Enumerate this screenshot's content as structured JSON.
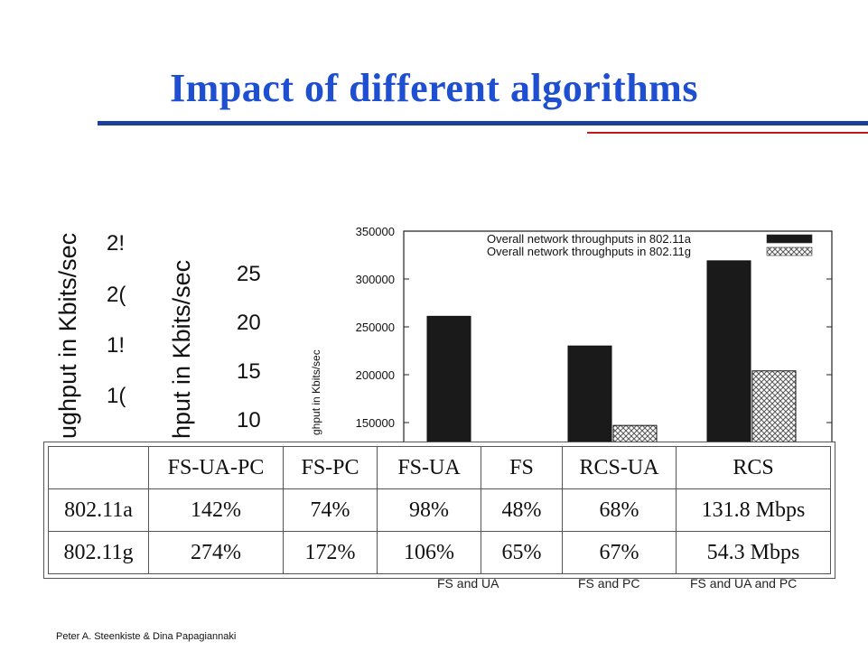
{
  "slide": {
    "title": "Impact of different algorithms",
    "footer": "Peter A. Steenkiste & Dina Papagiannaki",
    "colors": {
      "title": "#1f4fd1",
      "rule_blue": "#1c3f9a",
      "rule_red": "#c01c1c"
    }
  },
  "fragments": {
    "left": {
      "ylabel": "ughput in Kbits/sec",
      "ticks": [
        "2!",
        "2(",
        "1!",
        "1("
      ]
    },
    "middle": {
      "ylabel": "hput in Kbits/sec",
      "ticks": [
        "25",
        "20",
        "15",
        "10"
      ]
    }
  },
  "chart_data": {
    "type": "bar",
    "ylabel": "ghput in Kbits/sec",
    "yticks": [
      150000,
      200000,
      250000,
      300000,
      350000
    ],
    "ylim": [
      130000,
      350000
    ],
    "legend_position": "top-right",
    "categories": [
      "FS and UA",
      "FS and PC",
      "FS and UA and PC"
    ],
    "series": [
      {
        "name": "Overall network throughputs in 802.11a",
        "color": "#1a1a1a",
        "values": [
          261000,
          230000,
          319000
        ]
      },
      {
        "name": "Overall network throughputs in 802.11g",
        "color": "hatched",
        "values": [
          null,
          147000,
          204000
        ]
      }
    ]
  },
  "table": {
    "headers": [
      "",
      "FS-UA-PC",
      "FS-PC",
      "FS-UA",
      "FS",
      "RCS-UA",
      "RCS"
    ],
    "rows": [
      [
        "802.11a",
        "142%",
        "74%",
        "98%",
        "48%",
        "68%",
        "131.8 Mbps"
      ],
      [
        "802.11g",
        "274%",
        "172%",
        "106%",
        "65%",
        "67%",
        "54.3 Mbps"
      ]
    ]
  }
}
